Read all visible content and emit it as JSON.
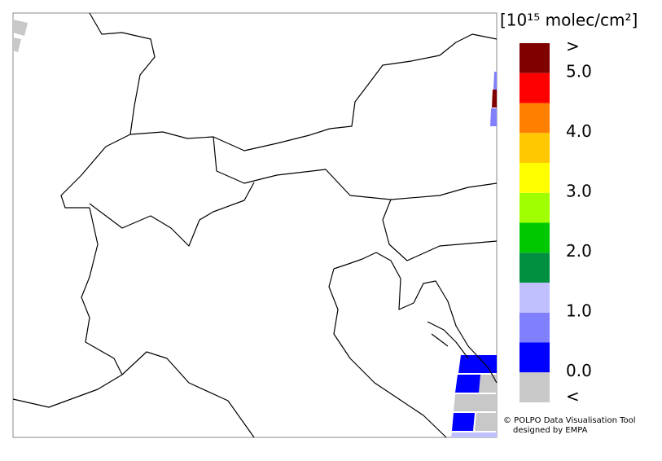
{
  "map": {
    "colorbar": {
      "title": "[10¹⁵ molec/cm²]",
      "range": [
        0,
        5
      ],
      "colors": [
        "#0000ff",
        "#8080ff",
        "#c0c0ff",
        "#009040",
        "#00c800",
        "#a0ff00",
        "#ffff00",
        "#ffc800",
        "#ff8000",
        "#ff0000"
      ],
      "over_color": "#800000",
      "under_color": "#c8c8c8",
      "over_label": ">",
      "under_label": "<",
      "ticks": [
        {
          "value": 0,
          "label": "0.0"
        },
        {
          "value": 1,
          "label": "1.0"
        },
        {
          "value": 2,
          "label": "2.0"
        },
        {
          "value": 3,
          "label": "3.0"
        },
        {
          "value": 4,
          "label": "4.0"
        },
        {
          "value": 5,
          "label": "5.0"
        }
      ]
    },
    "credit": [
      "© POLPO Data Visualisation Tool",
      "designed by EMPA"
    ]
  }
}
